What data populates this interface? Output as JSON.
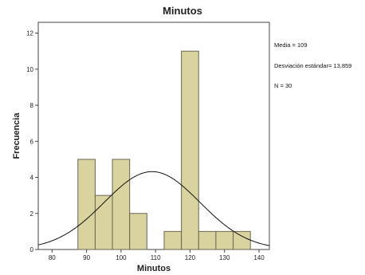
{
  "chart_data": {
    "type": "bar",
    "title": "Minutos",
    "xlabel": "Minutos",
    "ylabel": "Frecuencia",
    "xlim": [
      76,
      143
    ],
    "ylim": [
      0,
      12.6
    ],
    "xticks": [
      80,
      90,
      100,
      110,
      120,
      130,
      140
    ],
    "yticks": [
      0,
      2,
      4,
      6,
      8,
      10,
      12
    ],
    "bin_width": 5,
    "bins": [
      {
        "start": 87.5,
        "value": 5
      },
      {
        "start": 92.5,
        "value": 3
      },
      {
        "start": 97.5,
        "value": 5
      },
      {
        "start": 102.5,
        "value": 2
      },
      {
        "start": 107.5,
        "value": 0
      },
      {
        "start": 112.5,
        "value": 1
      },
      {
        "start": 117.5,
        "value": 11
      },
      {
        "start": 122.5,
        "value": 1
      },
      {
        "start": 127.5,
        "value": 1
      },
      {
        "start": 132.5,
        "value": 1
      }
    ],
    "normal_curve": {
      "mean": 109,
      "sd": 13.859,
      "n": 30
    },
    "stats_lines": [
      "Media = 109",
      "Desviación estándar= 13,859",
      "N = 30"
    ],
    "bar_color": "#d9d3a0",
    "bar_edge": "#6b6650",
    "plot_bg": "#ffffff"
  }
}
